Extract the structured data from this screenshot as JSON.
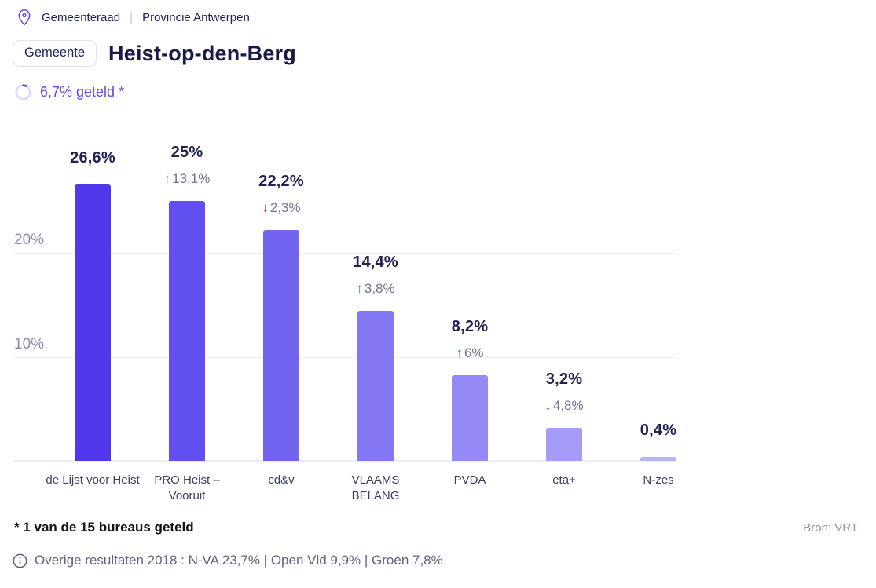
{
  "breadcrumb": {
    "election": "Gemeenteraad",
    "province": "Provincie Antwerpen"
  },
  "header": {
    "badge": "Gemeente",
    "title": "Heist-op-den-Berg",
    "counted": "6,7% geteld *",
    "counted_pct": 6.7,
    "accent_color": "#6b46ee"
  },
  "chart_data": {
    "type": "bar",
    "title": "",
    "xlabel": "",
    "ylabel": "",
    "categories": [
      "de Lijst voor Heist",
      "PRO Heist – Vooruit",
      "cd&v",
      "VLAAMS BELANG",
      "PVDA",
      "eta+",
      "N-zes"
    ],
    "values": [
      26.6,
      25,
      22.2,
      14.4,
      8.2,
      3.2,
      0.4
    ],
    "value_labels": [
      "26,6%",
      "25%",
      "22,2%",
      "14,4%",
      "8,2%",
      "3,2%",
      "0,4%"
    ],
    "changes": [
      null,
      {
        "direction": "up",
        "label": "13,1%"
      },
      {
        "direction": "down",
        "label": "2,3%"
      },
      {
        "direction": "up",
        "label": "3,8%"
      },
      {
        "direction": "up",
        "label": "6%"
      },
      {
        "direction": "down",
        "label": "4,8%"
      },
      null
    ],
    "bar_colors": [
      "#5138ec",
      "#6150ef",
      "#7264f1",
      "#8377f3",
      "#9489f5",
      "#a59cf7",
      "#b7b1f8"
    ],
    "y_ticks": [
      {
        "label": "20%",
        "value": 20
      },
      {
        "label": "10%",
        "value": 10
      }
    ],
    "ylim": [
      0,
      32
    ],
    "grid": true,
    "legend": false,
    "up_color": "#2d9d46",
    "down_color": "#db4437"
  },
  "footer": {
    "footnote": "* 1 van de 15 bureaus geteld",
    "source": "Bron: VRT",
    "other_results": "Overige resultaten 2018 : N-VA 23,7% | Open Vld 9,9% | Groen 7,8%"
  }
}
